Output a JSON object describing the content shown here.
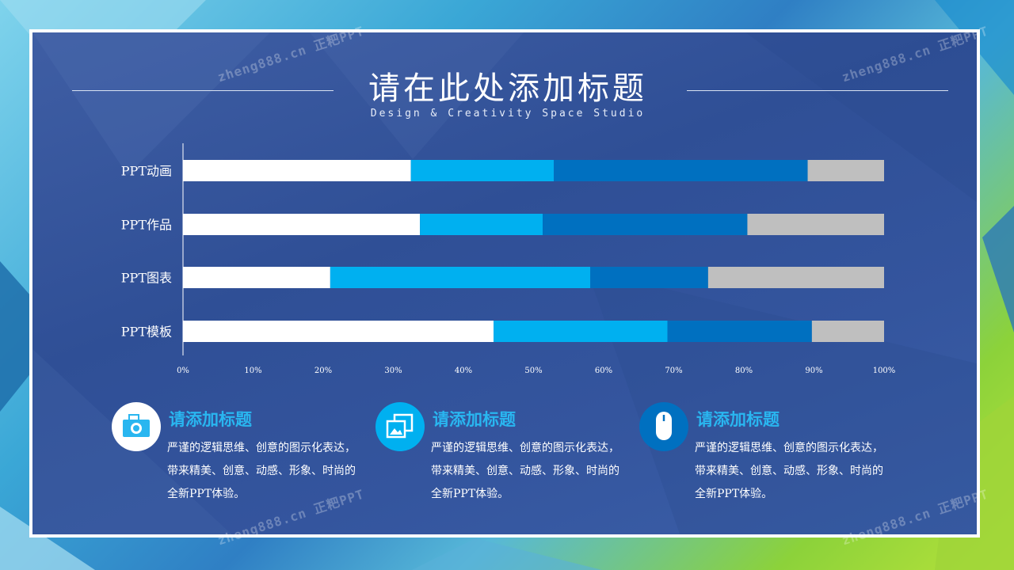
{
  "slide": {
    "title": "请在此处添加标题",
    "subtitle": "Design & Creativity Space Studio",
    "watermark": "zheng888.cn 正粑PPT"
  },
  "colors": {
    "segment_1": "#ffffff",
    "segment_2": "#00b0f0",
    "segment_3": "#0070c0",
    "segment_4": "#bfbfbf",
    "accent": "#29b6f0"
  },
  "chart_data": {
    "type": "bar",
    "orientation": "horizontal",
    "stacked": "percent",
    "categories": [
      "PPT动画",
      "PPT作品",
      "PPT图表",
      "PPT模板"
    ],
    "series": [
      {
        "values": [
          32.5,
          33.8,
          21.0,
          44.3
        ]
      },
      {
        "values": [
          20.4,
          17.5,
          37.1,
          24.8
        ]
      },
      {
        "values": [
          36.2,
          29.2,
          16.8,
          20.6
        ]
      },
      {
        "values": [
          10.9,
          19.5,
          25.1,
          10.3
        ]
      }
    ],
    "xlim": [
      0,
      100
    ],
    "xticks": [
      "0%",
      "10%",
      "20%",
      "30%",
      "40%",
      "50%",
      "60%",
      "70%",
      "80%",
      "90%",
      "100%"
    ],
    "grid": false,
    "legend": "none"
  },
  "cards": [
    {
      "icon": "camera-icon",
      "title": "请添加标题",
      "text": "严谨的逻辑思维、创意的图示化表达，带来精美、创意、动感、形象、时尚的全新PPT体验。"
    },
    {
      "icon": "photos-icon",
      "title": "请添加标题",
      "text": "严谨的逻辑思维、创意的图示化表达，带来精美、创意、动感、形象、时尚的全新PPT体验。"
    },
    {
      "icon": "mouse-icon",
      "title": "请添加标题",
      "text": "严谨的逻辑思维、创意的图示化表达，带来精美、创意、动感、形象、时尚的全新PPT体验。"
    }
  ]
}
